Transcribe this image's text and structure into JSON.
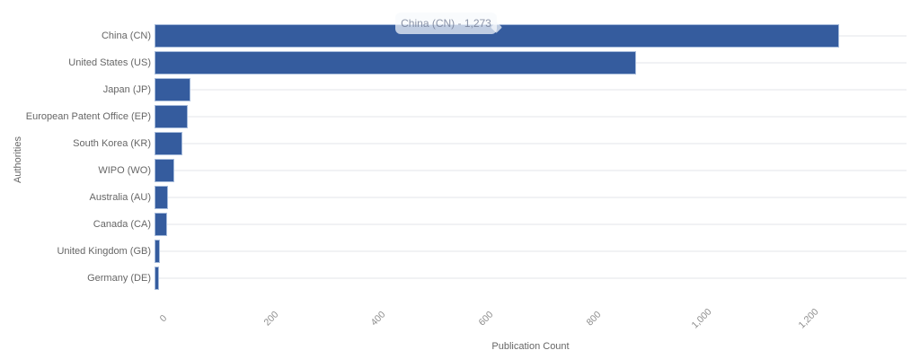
{
  "chart_data": {
    "type": "bar",
    "orientation": "horizontal",
    "title": "",
    "xlabel": "Publication Count",
    "ylabel": "Authorities",
    "categories": [
      "China (CN)",
      "United States (US)",
      "Japan (JP)",
      "European Patent Office (EP)",
      "South Korea (KR)",
      "WIPO (WO)",
      "Australia (AU)",
      "Canada (CA)",
      "United Kingdom (GB)",
      "Germany (DE)"
    ],
    "values": [
      1273,
      895,
      67,
      62,
      52,
      37,
      25,
      23,
      10,
      8
    ],
    "xlim": [
      0,
      1398
    ],
    "x_ticks": [
      0,
      200,
      400,
      600,
      800,
      1000,
      1200
    ],
    "x_tick_labels": [
      "0",
      "200",
      "400",
      "600",
      "800",
      "1,000",
      "1,200"
    ],
    "grid": "horizontal-category-lines",
    "legend_position": "none",
    "bar_color": "#355c9e",
    "bar_border_color": "#a6bbdb"
  },
  "tooltip": {
    "text": "China (CN) - 1,273"
  }
}
